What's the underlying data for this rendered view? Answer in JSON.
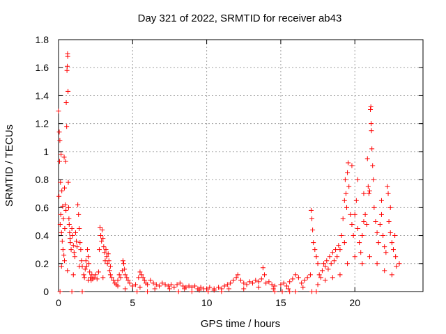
{
  "chart_data": {
    "type": "scatter",
    "title": "Day 321 of 2022, SRMTID for receiver ab43",
    "xlabel": "GPS time / hours",
    "ylabel": "SRMTID / TECUs",
    "xlim": [
      0,
      24.6
    ],
    "ylim": [
      0,
      1.8
    ],
    "xticks": [
      0,
      5,
      10,
      15,
      20
    ],
    "xtick_labels": [
      "0",
      "5",
      "10",
      "15",
      "20"
    ],
    "yticks": [
      0,
      0.2,
      0.4,
      0.6,
      0.8,
      1.0,
      1.2,
      1.4,
      1.6,
      1.8
    ],
    "ytick_labels": [
      "0",
      "0.2",
      "0.4",
      "0.6",
      "0.8",
      "1",
      "1.2",
      "1.4",
      "1.6",
      "1.8"
    ],
    "grid": true,
    "marker": "+",
    "series": [
      {
        "name": "SRMTID",
        "color": "#ff0000",
        "points": [
          [
            0.0,
            1.29
          ],
          [
            0.03,
            0.68
          ],
          [
            0.05,
            1.14
          ],
          [
            0.07,
            0.93
          ],
          [
            0.09,
            1.08
          ],
          [
            0.11,
            0.48
          ],
          [
            0.13,
            0.78
          ],
          [
            0.15,
            0.55
          ],
          [
            0.17,
            0.98
          ],
          [
            0.2,
            0.42
          ],
          [
            0.22,
            0.72
          ],
          [
            0.25,
            0.36
          ],
          [
            0.28,
            0.61
          ],
          [
            0.3,
            0.3
          ],
          [
            0.33,
            0.52
          ],
          [
            0.36,
            0.26
          ],
          [
            0.38,
            0.96
          ],
          [
            0.4,
            0.74
          ],
          [
            0.42,
            0.45
          ],
          [
            0.45,
            0.62
          ],
          [
            0.48,
            0.93
          ],
          [
            0.5,
            0.58
          ],
          [
            0.52,
            1.35
          ],
          [
            0.55,
            1.18
          ],
          [
            0.57,
            1.58
          ],
          [
            0.59,
            1.61
          ],
          [
            0.61,
            1.7
          ],
          [
            0.62,
            1.68
          ],
          [
            0.64,
            1.43
          ],
          [
            0.66,
            0.78
          ],
          [
            0.68,
            0.6
          ],
          [
            0.7,
            0.52
          ],
          [
            0.72,
            0.48
          ],
          [
            0.75,
            0.42
          ],
          [
            0.78,
            0.38
          ],
          [
            0.8,
            0.35
          ],
          [
            0.85,
            0.3
          ],
          [
            0.9,
            0.45
          ],
          [
            0.95,
            0.4
          ],
          [
            1.0,
            0.33
          ],
          [
            1.05,
            0.28
          ],
          [
            1.1,
            0.25
          ],
          [
            1.15,
            0.42
          ],
          [
            1.2,
            0.36
          ],
          [
            1.25,
            0.32
          ],
          [
            1.3,
            0.62
          ],
          [
            1.35,
            0.55
          ],
          [
            1.4,
            0.45
          ],
          [
            1.45,
            0.35
          ],
          [
            1.5,
            0.3
          ],
          [
            1.55,
            0.22
          ],
          [
            1.6,
            0.18
          ],
          [
            1.7,
            0.12
          ],
          [
            1.75,
            0.1
          ],
          [
            1.8,
            0.16
          ],
          [
            1.85,
            0.22
          ],
          [
            1.9,
            0.18
          ],
          [
            1.95,
            0.3
          ],
          [
            2.0,
            0.25
          ],
          [
            2.05,
            0.2
          ],
          [
            2.1,
            0.14
          ],
          [
            2.15,
            0.1
          ],
          [
            2.2,
            0.08
          ],
          [
            2.25,
            0.12
          ],
          [
            2.3,
            0.09
          ],
          [
            2.4,
            0.1
          ],
          [
            2.5,
            0.12
          ],
          [
            2.6,
            0.09
          ],
          [
            2.7,
            0.14
          ],
          [
            2.75,
            0.3
          ],
          [
            2.8,
            0.46
          ],
          [
            2.85,
            0.4
          ],
          [
            2.9,
            0.36
          ],
          [
            2.95,
            0.44
          ],
          [
            3.0,
            0.38
          ],
          [
            3.05,
            0.32
          ],
          [
            3.1,
            0.28
          ],
          [
            3.15,
            0.22
          ],
          [
            3.2,
            0.3
          ],
          [
            3.25,
            0.25
          ],
          [
            3.3,
            0.2
          ],
          [
            3.35,
            0.27
          ],
          [
            3.4,
            0.22
          ],
          [
            3.45,
            0.15
          ],
          [
            3.5,
            0.12
          ],
          [
            3.6,
            0.1
          ],
          [
            3.7,
            0.08
          ],
          [
            3.8,
            0.06
          ],
          [
            3.9,
            0.05
          ],
          [
            4.0,
            0.08
          ],
          [
            4.1,
            0.12
          ],
          [
            4.2,
            0.1
          ],
          [
            4.3,
            0.15
          ],
          [
            4.35,
            0.22
          ],
          [
            4.4,
            0.2
          ],
          [
            4.45,
            0.16
          ],
          [
            4.5,
            0.12
          ],
          [
            4.6,
            0.1
          ],
          [
            4.7,
            0.08
          ],
          [
            4.8,
            0.06
          ],
          [
            5.0,
            0.04
          ],
          [
            5.2,
            0.05
          ],
          [
            5.4,
            0.1
          ],
          [
            5.5,
            0.14
          ],
          [
            5.6,
            0.12
          ],
          [
            5.7,
            0.1
          ],
          [
            5.8,
            0.08
          ],
          [
            5.9,
            0.06
          ],
          [
            6.0,
            0.05
          ],
          [
            6.2,
            0.08
          ],
          [
            6.4,
            0.06
          ],
          [
            6.6,
            0.05
          ],
          [
            6.8,
            0.04
          ],
          [
            7.0,
            0.06
          ],
          [
            7.2,
            0.05
          ],
          [
            7.4,
            0.04
          ],
          [
            7.6,
            0.05
          ],
          [
            7.8,
            0.03
          ],
          [
            8.0,
            0.05
          ],
          [
            8.2,
            0.06
          ],
          [
            8.4,
            0.04
          ],
          [
            8.6,
            0.03
          ],
          [
            8.8,
            0.04
          ],
          [
            9.0,
            0.03
          ],
          [
            9.2,
            0.04
          ],
          [
            9.4,
            0.02
          ],
          [
            9.6,
            0.03
          ],
          [
            9.8,
            0.02
          ],
          [
            10.0,
            0.02
          ],
          [
            10.2,
            0.03
          ],
          [
            10.5,
            0.02
          ],
          [
            10.8,
            0.03
          ],
          [
            11.0,
            0.02
          ],
          [
            11.2,
            0.04
          ],
          [
            11.4,
            0.05
          ],
          [
            11.6,
            0.06
          ],
          [
            11.8,
            0.08
          ],
          [
            12.0,
            0.1
          ],
          [
            12.1,
            0.12
          ],
          [
            12.3,
            0.08
          ],
          [
            12.5,
            0.06
          ],
          [
            12.7,
            0.05
          ],
          [
            12.9,
            0.07
          ],
          [
            13.1,
            0.06
          ],
          [
            13.3,
            0.08
          ],
          [
            13.5,
            0.07
          ],
          [
            13.7,
            0.09
          ],
          [
            13.8,
            0.17
          ],
          [
            13.9,
            0.12
          ],
          [
            14.0,
            0.06
          ],
          [
            14.2,
            0.07
          ],
          [
            14.4,
            0.05
          ],
          [
            14.6,
            0.04
          ],
          [
            15.0,
            0.05
          ],
          [
            15.2,
            0.06
          ],
          [
            15.4,
            0.04
          ],
          [
            15.6,
            0.07
          ],
          [
            15.8,
            0.09
          ],
          [
            16.0,
            0.12
          ],
          [
            16.2,
            0.1
          ],
          [
            16.4,
            0.06
          ],
          [
            16.6,
            0.08
          ],
          [
            16.8,
            0.1
          ],
          [
            17.0,
            0.12
          ],
          [
            17.05,
            0.58
          ],
          [
            17.1,
            0.52
          ],
          [
            17.15,
            0.44
          ],
          [
            17.2,
            0.35
          ],
          [
            17.3,
            0.3
          ],
          [
            17.4,
            0.25
          ],
          [
            17.5,
            0.2
          ],
          [
            17.6,
            0.12
          ],
          [
            17.7,
            0.1
          ],
          [
            17.8,
            0.15
          ],
          [
            17.9,
            0.2
          ],
          [
            18.0,
            0.18
          ],
          [
            18.1,
            0.22
          ],
          [
            18.2,
            0.16
          ],
          [
            18.3,
            0.25
          ],
          [
            18.4,
            0.2
          ],
          [
            18.5,
            0.28
          ],
          [
            18.6,
            0.22
          ],
          [
            18.7,
            0.3
          ],
          [
            18.8,
            0.25
          ],
          [
            18.9,
            0.33
          ],
          [
            19.0,
            0.3
          ],
          [
            19.1,
            0.4
          ],
          [
            19.2,
            0.52
          ],
          [
            19.3,
            0.65
          ],
          [
            19.35,
            0.8
          ],
          [
            19.4,
            0.7
          ],
          [
            19.45,
            0.6
          ],
          [
            19.5,
            0.85
          ],
          [
            19.55,
            0.92
          ],
          [
            19.6,
            0.75
          ],
          [
            19.7,
            0.55
          ],
          [
            19.8,
            0.48
          ],
          [
            19.9,
            0.4
          ],
          [
            20.0,
            0.55
          ],
          [
            20.1,
            0.65
          ],
          [
            20.2,
            0.45
          ],
          [
            20.3,
            0.35
          ],
          [
            20.4,
            0.28
          ],
          [
            20.5,
            0.4
          ],
          [
            20.6,
            0.5
          ],
          [
            20.7,
            0.55
          ],
          [
            20.8,
            0.48
          ],
          [
            20.85,
            0.95
          ],
          [
            20.9,
            0.75
          ],
          [
            20.95,
            0.7
          ],
          [
            21.0,
            0.72
          ],
          [
            21.05,
            1.3
          ],
          [
            21.08,
            1.32
          ],
          [
            21.1,
            1.2
          ],
          [
            21.12,
            1.15
          ],
          [
            21.15,
            1.02
          ],
          [
            21.2,
            0.9
          ],
          [
            21.25,
            0.8
          ],
          [
            21.3,
            0.6
          ],
          [
            21.4,
            0.5
          ],
          [
            21.5,
            0.42
          ],
          [
            21.6,
            0.35
          ],
          [
            21.7,
            0.48
          ],
          [
            21.8,
            0.55
          ],
          [
            21.9,
            0.4
          ],
          [
            22.0,
            0.32
          ],
          [
            22.1,
            0.28
          ],
          [
            22.2,
            0.75
          ],
          [
            22.25,
            0.7
          ],
          [
            22.3,
            0.5
          ],
          [
            22.4,
            0.42
          ],
          [
            22.5,
            0.35
          ],
          [
            22.6,
            0.3
          ],
          [
            22.7,
            0.4
          ],
          [
            22.75,
            0.25
          ],
          [
            22.8,
            0.18
          ],
          [
            0.2,
            0.18
          ],
          [
            0.4,
            0.22
          ],
          [
            0.6,
            0.15
          ],
          [
            1.0,
            0.12
          ],
          [
            1.4,
            0.18
          ],
          [
            2.0,
            0.08
          ],
          [
            3.0,
            0.1
          ],
          [
            3.5,
            0.18
          ],
          [
            4.0,
            0.04
          ],
          [
            4.5,
            0.02
          ],
          [
            5.5,
            0.03
          ],
          [
            6.5,
            0.02
          ],
          [
            7.5,
            0.02
          ],
          [
            8.5,
            0.02
          ],
          [
            9.5,
            0.01
          ],
          [
            10.5,
            0.01
          ],
          [
            11.5,
            0.02
          ],
          [
            12.5,
            0.02
          ],
          [
            13.5,
            0.03
          ],
          [
            14.5,
            0.02
          ],
          [
            15.5,
            0.02
          ],
          [
            16.5,
            0.03
          ],
          [
            17.5,
            0.05
          ],
          [
            18.5,
            0.1
          ],
          [
            19.5,
            0.2
          ],
          [
            20.0,
            0.25
          ],
          [
            20.5,
            0.2
          ],
          [
            21.0,
            0.25
          ],
          [
            21.5,
            0.2
          ],
          [
            22.0,
            0.15
          ],
          [
            22.5,
            0.12
          ],
          [
            23.0,
            0.2
          ],
          [
            19.0,
            0.12
          ],
          [
            18.0,
            0.08
          ],
          [
            20.2,
            0.8
          ],
          [
            19.8,
            0.9
          ],
          [
            21.8,
            0.65
          ],
          [
            22.4,
            0.6
          ],
          [
            20.6,
            0.7
          ],
          [
            19.3,
            0.35
          ],
          [
            0.1,
            0.0
          ],
          [
            0.9,
            0.0
          ],
          [
            1.6,
            0.0
          ],
          [
            5.3,
            0.0
          ],
          [
            6.0,
            0.0
          ],
          [
            8.1,
            0.0
          ],
          [
            9.0,
            0.0
          ],
          [
            10.1,
            0.0
          ],
          [
            11.0,
            0.0
          ],
          [
            14.6,
            0.0
          ],
          [
            15.1,
            0.0
          ],
          [
            15.6,
            0.0
          ],
          [
            16.0,
            0.0
          ],
          [
            17.1,
            0.0
          ],
          [
            17.4,
            0.0
          ]
        ]
      }
    ]
  }
}
